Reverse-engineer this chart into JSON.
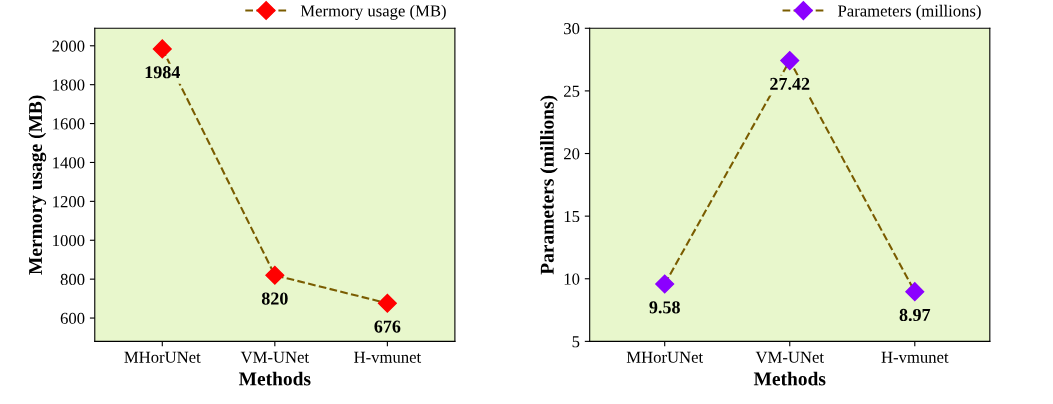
{
  "chart_data": [
    {
      "type": "line",
      "categories": [
        "MHorUNet",
        "VM-UNet",
        "H-vmunet"
      ],
      "xlabel": "Methods",
      "ylabel": "Mermory usage (MB)",
      "series": [
        {
          "name": "Mermory usage (MB)",
          "color": "#ff0000",
          "values": [
            1984,
            820,
            676
          ]
        }
      ],
      "line_style": "dashed",
      "marker": "diamond",
      "data_labels": true,
      "legend": "top right",
      "grid": false,
      "ylim": [
        480,
        2090
      ],
      "yticks": [
        600,
        800,
        1000,
        1200,
        1400,
        1600,
        1800,
        2000
      ]
    },
    {
      "type": "line",
      "categories": [
        "MHorUNet",
        "VM-UNet",
        "H-vmunet"
      ],
      "xlabel": "Methods",
      "ylabel": "Parameters (millions)",
      "series": [
        {
          "name": "Parameters (millions)",
          "color": "#8b00ff",
          "values": [
            9.58,
            27.42,
            8.97
          ]
        }
      ],
      "line_style": "dashed",
      "marker": "diamond",
      "data_labels": true,
      "legend": "top right",
      "grid": false,
      "ylim": [
        5,
        30
      ],
      "yticks": [
        5,
        10,
        15,
        20,
        25,
        30
      ]
    }
  ]
}
